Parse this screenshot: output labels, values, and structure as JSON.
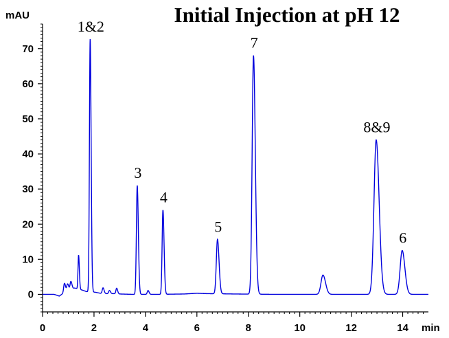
{
  "chart_data": {
    "type": "line",
    "title": "Initial Injection at pH 12",
    "xlabel": "min",
    "ylabel": "mAU",
    "xlim": [
      0,
      15
    ],
    "ylim": [
      -5,
      77
    ],
    "x_ticks": [
      0,
      2,
      4,
      6,
      8,
      10,
      12,
      14
    ],
    "y_ticks": [
      0,
      10,
      20,
      30,
      40,
      50,
      60,
      70
    ],
    "grid": false,
    "line_color": "#0000dd",
    "baseline_points": [
      [
        0,
        0
      ],
      [
        0.45,
        0
      ],
      [
        0.65,
        -0.5
      ],
      [
        0.8,
        0.3
      ],
      [
        1.0,
        1.3
      ],
      [
        1.25,
        1.8
      ],
      [
        1.55,
        1.2
      ],
      [
        1.7,
        0.8
      ],
      [
        2.05,
        0.6
      ],
      [
        2.25,
        0.3
      ],
      [
        2.5,
        0.2
      ],
      [
        2.8,
        0.2
      ],
      [
        3.0,
        0.1
      ],
      [
        3.5,
        0
      ],
      [
        4.5,
        0
      ],
      [
        5.5,
        0.1
      ],
      [
        6.0,
        0.3
      ],
      [
        6.4,
        0.2
      ],
      [
        7.5,
        0.1
      ],
      [
        9.0,
        0
      ],
      [
        10.3,
        0
      ],
      [
        11.5,
        0
      ],
      [
        12.3,
        0
      ],
      [
        13.5,
        0
      ],
      [
        14.5,
        0
      ],
      [
        15,
        0
      ]
    ],
    "peaks": [
      {
        "label": "",
        "rt": 0.85,
        "height": 2.6,
        "width": 0.03
      },
      {
        "label": "",
        "rt": 0.97,
        "height": 1.8,
        "width": 0.03
      },
      {
        "label": "",
        "rt": 1.1,
        "height": 2.2,
        "width": 0.03
      },
      {
        "label": "",
        "rt": 1.4,
        "height": 9.7,
        "width": 0.022
      },
      {
        "label": "1&2",
        "rt": 1.85,
        "height": 72,
        "width": 0.028
      },
      {
        "label": "",
        "rt": 2.35,
        "height": 1.6,
        "width": 0.03
      },
      {
        "label": "",
        "rt": 2.6,
        "height": 0.9,
        "width": 0.03
      },
      {
        "label": "",
        "rt": 2.88,
        "height": 1.6,
        "width": 0.028
      },
      {
        "label": "3",
        "rt": 3.68,
        "height": 31,
        "width": 0.032
      },
      {
        "label": "",
        "rt": 4.1,
        "height": 1.1,
        "width": 0.03
      },
      {
        "label": "4",
        "rt": 4.68,
        "height": 24,
        "width": 0.032
      },
      {
        "label": "5",
        "rt": 6.8,
        "height": 15.5,
        "width": 0.045
      },
      {
        "label": "7",
        "rt": 8.2,
        "height": 68,
        "width": 0.052
      },
      {
        "label": "",
        "rt": 10.9,
        "height": 5.5,
        "width": 0.075
      },
      {
        "label": "8&9",
        "rt": 12.97,
        "height": 44,
        "width": 0.085
      },
      {
        "label": "6",
        "rt": 13.98,
        "height": 12.5,
        "width": 0.078
      }
    ]
  }
}
